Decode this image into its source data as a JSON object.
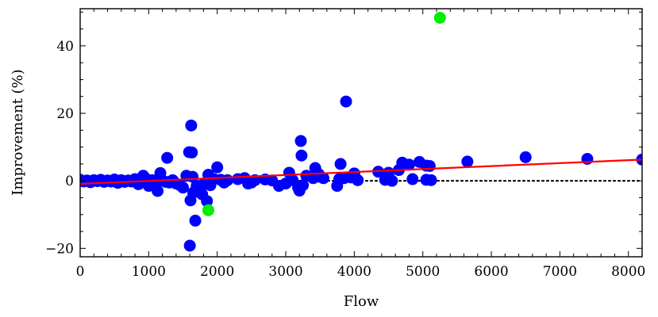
{
  "chart_data": {
    "type": "scatter",
    "title": "",
    "xlabel": "Flow",
    "ylabel": "Improvement (%)",
    "xlim": [
      0,
      8200
    ],
    "ylim": [
      -22.5,
      51
    ],
    "xticks": [
      0,
      1000,
      2000,
      3000,
      4000,
      5000,
      6000,
      7000,
      8000
    ],
    "yticks": [
      -20,
      0,
      20,
      40
    ],
    "xtick_labels": [
      "0",
      "1000",
      "2000",
      "3000",
      "4000",
      "5000",
      "6000",
      "7000",
      "8000"
    ],
    "ytick_labels": [
      "−20",
      "0",
      "20",
      "40"
    ],
    "grid": false,
    "colors": {
      "points": "#0000ff",
      "highlight": "#00ee00",
      "trend": "#ff0000",
      "zero_line": "#000000"
    },
    "series": [
      {
        "color": "#0000ff",
        "points": [
          [
            0,
            0.3
          ],
          [
            50,
            -0.2
          ],
          [
            100,
            0.1
          ],
          [
            150,
            -0.4
          ],
          [
            200,
            0.2
          ],
          [
            250,
            -0.1
          ],
          [
            300,
            0.3
          ],
          [
            350,
            -0.3
          ],
          [
            400,
            0.1
          ],
          [
            450,
            -0.2
          ],
          [
            500,
            0.4
          ],
          [
            550,
            -0.6
          ],
          [
            600,
            0.2
          ],
          [
            650,
            -0.3
          ],
          [
            700,
            0.1
          ],
          [
            750,
            -0.2
          ],
          [
            800,
            0.5
          ],
          [
            850,
            -1.0
          ],
          [
            900,
            -0.3
          ],
          [
            920,
            1.5
          ],
          [
            950,
            0.8
          ],
          [
            1000,
            -1.5
          ],
          [
            1050,
            0.2
          ],
          [
            1100,
            -0.4
          ],
          [
            1130,
            -3.0
          ],
          [
            1170,
            2.3
          ],
          [
            1200,
            0.1
          ],
          [
            1250,
            -0.3
          ],
          [
            1270,
            6.8
          ],
          [
            1300,
            -0.5
          ],
          [
            1350,
            0.2
          ],
          [
            1400,
            -0.8
          ],
          [
            1450,
            -1.2
          ],
          [
            1500,
            -2.0
          ],
          [
            1550,
            1.5
          ],
          [
            1590,
            8.5
          ],
          [
            1600,
            -19.2
          ],
          [
            1610,
            -5.8
          ],
          [
            1620,
            16.4
          ],
          [
            1630,
            8.4
          ],
          [
            1640,
            1.2
          ],
          [
            1650,
            -3.5
          ],
          [
            1680,
            -11.8
          ],
          [
            1700,
            -1.5
          ],
          [
            1750,
            -2.8
          ],
          [
            1780,
            -4.0
          ],
          [
            1800,
            -1.0
          ],
          [
            1850,
            -6.0
          ],
          [
            1870,
            1.8
          ],
          [
            1900,
            -1.3
          ],
          [
            1950,
            0.5
          ],
          [
            2000,
            4.0
          ],
          [
            2050,
            0.3
          ],
          [
            2100,
            -0.5
          ],
          [
            2150,
            0.2
          ],
          [
            2300,
            0.5
          ],
          [
            2400,
            0.8
          ],
          [
            2450,
            -0.8
          ],
          [
            2500,
            -0.5
          ],
          [
            2550,
            0.2
          ],
          [
            2700,
            0.4
          ],
          [
            2800,
            0.1
          ],
          [
            2900,
            -1.5
          ],
          [
            3000,
            -0.8
          ],
          [
            3050,
            2.4
          ],
          [
            3100,
            0.2
          ],
          [
            3180,
            -2.0
          ],
          [
            3200,
            -2.9
          ],
          [
            3220,
            11.8
          ],
          [
            3230,
            7.5
          ],
          [
            3250,
            -1.3
          ],
          [
            3300,
            1.5
          ],
          [
            3400,
            0.8
          ],
          [
            3430,
            3.8
          ],
          [
            3480,
            2.0
          ],
          [
            3500,
            1.2
          ],
          [
            3550,
            0.8
          ],
          [
            3750,
            -1.5
          ],
          [
            3780,
            0.5
          ],
          [
            3800,
            5.0
          ],
          [
            3850,
            0.8
          ],
          [
            3880,
            23.5
          ],
          [
            3950,
            1.0
          ],
          [
            4000,
            2.2
          ],
          [
            4050,
            0.2
          ],
          [
            4350,
            2.7
          ],
          [
            4450,
            0.3
          ],
          [
            4500,
            2.4
          ],
          [
            4550,
            0.0
          ],
          [
            4650,
            3.2
          ],
          [
            4700,
            5.4
          ],
          [
            4800,
            4.8
          ],
          [
            4850,
            0.5
          ],
          [
            4950,
            5.6
          ],
          [
            5050,
            0.3
          ],
          [
            5050,
            4.5
          ],
          [
            5100,
            4.4
          ],
          [
            5120,
            0.2
          ],
          [
            5650,
            5.7
          ],
          [
            6500,
            7.0
          ],
          [
            7400,
            6.5
          ],
          [
            8200,
            6.3
          ]
        ]
      },
      {
        "color": "#00ee00",
        "points": [
          [
            1870,
            -8.7
          ],
          [
            5250,
            48.3
          ]
        ]
      }
    ],
    "trendline": {
      "x": [
        0,
        8200
      ],
      "y": [
        -0.9,
        6.3
      ],
      "color": "#ff0000"
    },
    "reference_line": {
      "y": 0,
      "style": "dotted",
      "color": "#000000"
    }
  }
}
